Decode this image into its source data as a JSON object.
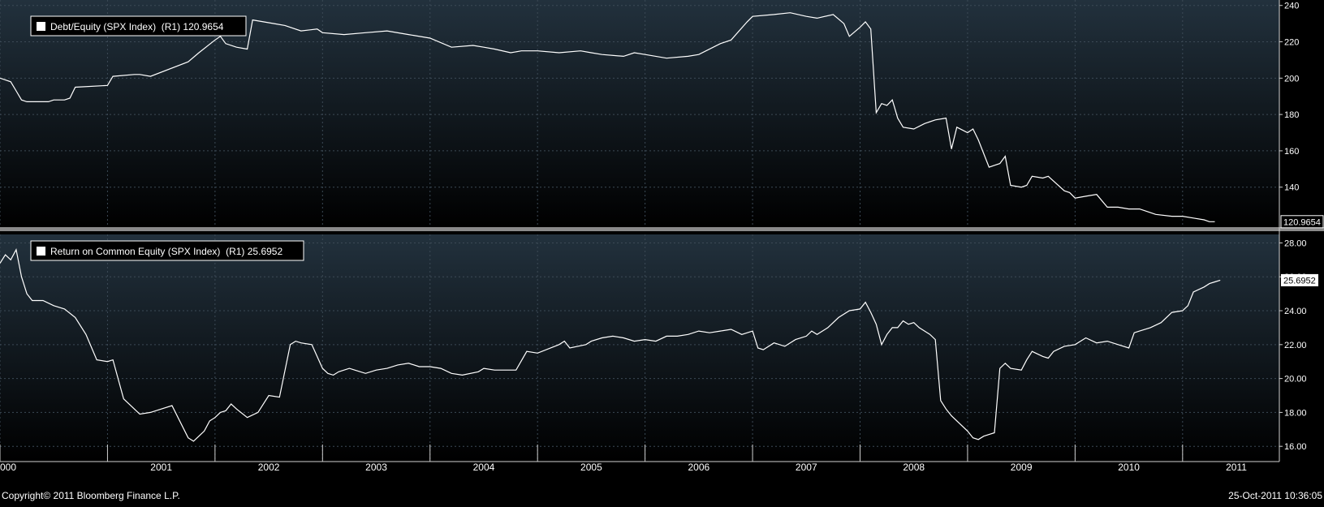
{
  "footer": {
    "copyright": "Copyright© 2011 Bloomberg Finance L.P.",
    "timestamp": "25-Oct-2011 10:36:05"
  },
  "x_axis": {
    "first_label_partial": "000",
    "years": [
      "2001",
      "2002",
      "2003",
      "2004",
      "2005",
      "2006",
      "2007",
      "2008",
      "2009",
      "2010",
      "2011"
    ]
  },
  "colors": {
    "line": "#ffffff",
    "panel_gradient_top": "#22313d",
    "panel_gradient_bottom": "#000000",
    "grid": "#3c4a56",
    "divider": "#8a8a8a"
  },
  "chart_data": [
    {
      "type": "line",
      "legend": "Debt/Equity (SPX Index)  (R1) 120.9654",
      "last_value_label": "120.9654",
      "y_axis_side": "right",
      "y_ticks": [
        "240",
        "220",
        "200",
        "180",
        "160",
        "140"
      ],
      "ylim": [
        118,
        243
      ],
      "xlim": [
        2000.0,
        2011.9
      ],
      "grid": true,
      "x": [
        2000.0,
        2000.1,
        2000.15,
        2000.2,
        2000.25,
        2000.45,
        2000.5,
        2000.6,
        2000.65,
        2000.7,
        2001.0,
        2001.05,
        2001.25,
        2001.3,
        2001.4,
        2001.75,
        2001.85,
        2002.0,
        2002.05,
        2002.1,
        2002.2,
        2002.3,
        2002.35,
        2002.45,
        2002.55,
        2002.65,
        2002.8,
        2002.95,
        2003.0,
        2003.2,
        2003.4,
        2003.6,
        2003.8,
        2004.0,
        2004.2,
        2004.4,
        2004.5,
        2004.6,
        2004.75,
        2004.85,
        2005.0,
        2005.2,
        2005.4,
        2005.5,
        2005.6,
        2005.8,
        2005.9,
        2006.0,
        2006.2,
        2006.4,
        2006.5,
        2006.7,
        2006.8,
        2006.95,
        2007.0,
        2007.2,
        2007.35,
        2007.5,
        2007.6,
        2007.75,
        2007.85,
        2007.9,
        2008.0,
        2008.05,
        2008.1,
        2008.15,
        2008.2,
        2008.25,
        2008.3,
        2008.32,
        2008.35,
        2008.4,
        2008.5,
        2008.6,
        2008.7,
        2008.8,
        2008.85,
        2008.9,
        2009.0,
        2009.05,
        2009.1,
        2009.2,
        2009.25,
        2009.3,
        2009.35,
        2009.4,
        2009.5,
        2009.55,
        2009.6,
        2009.7,
        2009.75,
        2009.9,
        2009.95,
        2010.0,
        2010.1,
        2010.2,
        2010.3,
        2010.4,
        2010.5,
        2010.6,
        2010.7,
        2010.75,
        2010.9,
        2011.0,
        2011.1,
        2011.2,
        2011.25,
        2011.3
      ],
      "y": [
        200,
        198,
        193,
        188,
        187,
        187,
        188,
        188,
        189,
        195,
        196,
        201,
        202,
        202,
        201,
        209,
        214,
        221,
        223,
        219,
        217,
        216,
        232,
        231,
        230,
        229,
        226,
        227,
        225,
        224,
        225,
        226,
        224,
        222,
        217,
        218,
        217,
        216,
        214,
        215,
        215,
        214,
        215,
        214,
        213,
        212,
        214,
        213,
        211,
        212,
        213,
        219,
        221,
        231,
        234,
        235,
        236,
        234,
        233,
        235,
        230,
        223,
        228,
        231,
        227,
        181,
        186,
        185,
        188,
        184,
        178,
        173,
        172,
        175,
        177,
        178,
        161,
        173,
        170,
        172,
        166,
        151,
        152,
        153,
        157,
        141,
        140,
        141,
        146,
        145,
        146,
        138,
        137,
        134,
        135,
        136,
        129,
        129,
        128,
        128,
        126,
        125,
        124,
        124,
        123,
        122,
        121,
        121
      ],
      "series": [
        {
          "name": "Debt/Equity (SPX Index)"
        }
      ]
    },
    {
      "type": "line",
      "legend": "Return on Common Equity (SPX Index)  (R1) 25.6952",
      "last_value_label": "25.6952",
      "y_axis_side": "right",
      "y_ticks": [
        "28.00",
        "26.00",
        "24.00",
        "22.00",
        "20.00",
        "18.00",
        "16.00"
      ],
      "ylim": [
        15.1,
        28.5
      ],
      "xlim": [
        2000.0,
        2011.9
      ],
      "grid": true,
      "x": [
        2000.0,
        2000.05,
        2000.1,
        2000.15,
        2000.2,
        2000.25,
        2000.3,
        2000.4,
        2000.5,
        2000.6,
        2000.7,
        2000.8,
        2000.9,
        2001.0,
        2001.05,
        2001.15,
        2001.25,
        2001.3,
        2001.4,
        2001.5,
        2001.6,
        2001.75,
        2001.8,
        2001.85,
        2001.9,
        2001.95,
        2002.0,
        2002.05,
        2002.1,
        2002.15,
        2002.2,
        2002.3,
        2002.4,
        2002.5,
        2002.6,
        2002.7,
        2002.75,
        2002.8,
        2002.9,
        2003.0,
        2003.05,
        2003.1,
        2003.15,
        2003.25,
        2003.3,
        2003.4,
        2003.5,
        2003.6,
        2003.7,
        2003.8,
        2003.9,
        2004.0,
        2004.1,
        2004.2,
        2004.3,
        2004.45,
        2004.5,
        2004.6,
        2004.7,
        2004.8,
        2004.9,
        2005.0,
        2005.2,
        2005.25,
        2005.3,
        2005.45,
        2005.5,
        2005.6,
        2005.7,
        2005.8,
        2005.9,
        2006.0,
        2006.1,
        2006.2,
        2006.3,
        2006.4,
        2006.5,
        2006.6,
        2006.7,
        2006.8,
        2006.9,
        2007.0,
        2007.05,
        2007.1,
        2007.2,
        2007.3,
        2007.4,
        2007.5,
        2007.55,
        2007.6,
        2007.7,
        2007.8,
        2007.9,
        2008.0,
        2008.05,
        2008.1,
        2008.15,
        2008.2,
        2008.25,
        2008.3,
        2008.35,
        2008.4,
        2008.45,
        2008.5,
        2008.55,
        2008.6,
        2008.65,
        2008.7,
        2008.75,
        2008.8,
        2008.85,
        2009.0,
        2009.05,
        2009.1,
        2009.15,
        2009.2,
        2009.25,
        2009.3,
        2009.35,
        2009.4,
        2009.5,
        2009.55,
        2009.6,
        2009.7,
        2009.75,
        2009.8,
        2009.9,
        2010.0,
        2010.05,
        2010.1,
        2010.2,
        2010.3,
        2010.4,
        2010.5,
        2010.55,
        2010.6,
        2010.7,
        2010.8,
        2010.9,
        2011.0,
        2011.05,
        2011.1,
        2011.2,
        2011.25,
        2011.3,
        2011.35
      ],
      "y": [
        26.8,
        27.3,
        27.0,
        27.6,
        26.0,
        25.0,
        24.6,
        24.6,
        24.3,
        24.1,
        23.6,
        22.6,
        21.1,
        21.0,
        21.1,
        18.8,
        18.2,
        17.9,
        18.0,
        18.2,
        18.4,
        16.5,
        16.3,
        16.6,
        16.9,
        17.5,
        17.7,
        18.0,
        18.1,
        18.5,
        18.2,
        17.7,
        18.0,
        19.0,
        18.9,
        22.0,
        22.2,
        22.1,
        22.0,
        20.6,
        20.3,
        20.2,
        20.4,
        20.6,
        20.5,
        20.3,
        20.5,
        20.6,
        20.8,
        20.9,
        20.7,
        20.7,
        20.6,
        20.3,
        20.2,
        20.4,
        20.6,
        20.5,
        20.5,
        20.5,
        21.6,
        21.5,
        22.0,
        22.2,
        21.8,
        22.0,
        22.2,
        22.4,
        22.5,
        22.4,
        22.2,
        22.3,
        22.2,
        22.5,
        22.5,
        22.6,
        22.8,
        22.7,
        22.8,
        22.9,
        22.6,
        22.8,
        21.8,
        21.7,
        22.1,
        21.9,
        22.3,
        22.5,
        22.8,
        22.6,
        23.0,
        23.6,
        24.0,
        24.1,
        24.5,
        23.9,
        23.2,
        22.0,
        22.6,
        23.0,
        23.0,
        23.4,
        23.2,
        23.3,
        23.0,
        22.8,
        22.6,
        22.3,
        18.7,
        18.2,
        17.8,
        16.9,
        16.5,
        16.4,
        16.6,
        16.7,
        16.8,
        20.6,
        20.9,
        20.6,
        20.5,
        21.1,
        21.6,
        21.3,
        21.2,
        21.6,
        21.9,
        22.0,
        22.2,
        22.4,
        22.1,
        22.2,
        22.0,
        21.8,
        22.7,
        22.8,
        23.0,
        23.3,
        23.9,
        24.0,
        24.3,
        25.1,
        25.4,
        25.6,
        25.7,
        25.8
      ],
      "series": [
        {
          "name": "Return on Common Equity (SPX Index)"
        }
      ]
    }
  ]
}
